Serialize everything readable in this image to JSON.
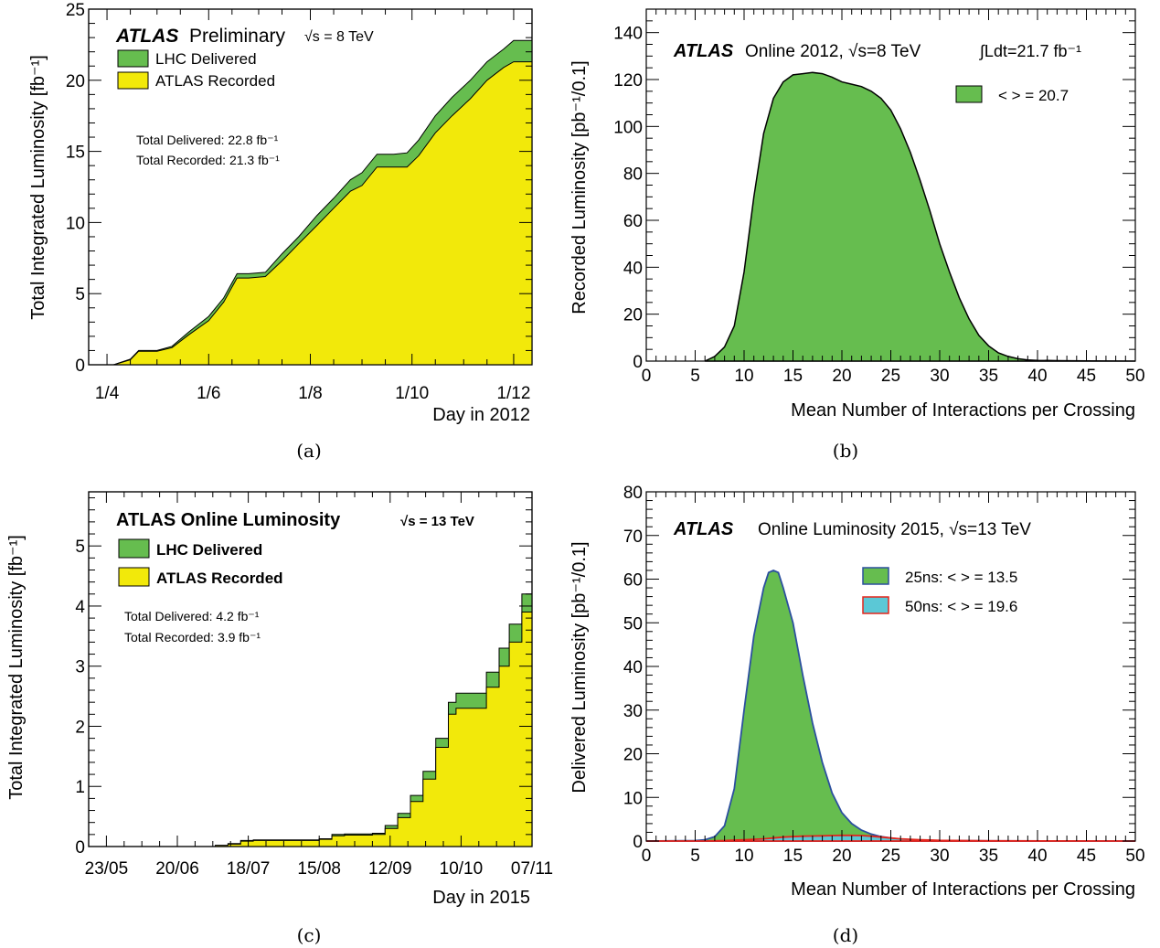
{
  "captions": [
    "(a)",
    "(b)",
    "(c)",
    "(d)"
  ],
  "colors": {
    "green": "#66bd4f",
    "yellow": "#f2e90a",
    "cyan": "#5bc8d6",
    "blue": "#2b4f9e",
    "red": "#e4251c"
  },
  "chart_data": [
    {
      "type": "area",
      "ylabel": "Total Integrated Luminosity  [fb⁻¹]",
      "xlabel": "Day in 2012",
      "ylim": [
        0,
        25
      ],
      "yticks": [
        "0",
        "5",
        "10",
        "15",
        "20",
        "25"
      ],
      "xticks": [
        "1/4",
        "1/6",
        "1/8",
        "1/10",
        "1/12"
      ],
      "header": {
        "atlas": "ATLAS",
        "label": "Preliminary",
        "energy": "√s = 8 TeV"
      },
      "legend": [
        "LHC Delivered",
        "ATLAS Recorded"
      ],
      "notes": [
        "Total Delivered: 22.8 fb⁻¹",
        "Total Recorded: 21.3 fb⁻¹"
      ],
      "x": [
        "2012-04-05",
        "2012-04-15",
        "2012-04-20",
        "2012-05-01",
        "2012-05-10",
        "2012-05-20",
        "2012-06-01",
        "2012-06-10",
        "2012-06-18",
        "2012-06-25",
        "2012-07-05",
        "2012-07-15",
        "2012-07-25",
        "2012-08-05",
        "2012-08-15",
        "2012-08-25",
        "2012-09-01",
        "2012-09-10",
        "2012-09-20",
        "2012-09-28",
        "2012-10-05",
        "2012-10-15",
        "2012-10-25",
        "2012-11-05",
        "2012-11-15",
        "2012-11-25",
        "2012-12-01",
        "2012-12-08"
      ],
      "series": [
        {
          "name": "LHC Delivered",
          "values": [
            0,
            0.4,
            1.0,
            1.0,
            1.3,
            2.3,
            3.4,
            4.7,
            6.4,
            6.4,
            6.5,
            7.8,
            9.0,
            10.5,
            11.7,
            13.0,
            13.5,
            14.8,
            14.8,
            14.9,
            15.8,
            17.5,
            18.8,
            20.0,
            21.3,
            22.2,
            22.8,
            22.8
          ]
        },
        {
          "name": "ATLAS Recorded",
          "values": [
            0,
            0.35,
            0.95,
            0.95,
            1.2,
            2.1,
            3.1,
            4.4,
            6.1,
            6.1,
            6.2,
            7.3,
            8.5,
            9.8,
            11.0,
            12.2,
            12.6,
            13.9,
            13.9,
            13.9,
            14.7,
            16.3,
            17.5,
            18.7,
            20.0,
            20.9,
            21.3,
            21.3
          ]
        }
      ]
    },
    {
      "type": "area",
      "ylabel": "Recorded Luminosity [pb⁻¹/0.1]",
      "xlabel": "Mean Number of Interactions per Crossing",
      "xlim": [
        0,
        50
      ],
      "ylim": [
        0,
        150
      ],
      "xticks": [
        "0",
        "5",
        "10",
        "15",
        "20",
        "25",
        "30",
        "35",
        "40",
        "45",
        "50"
      ],
      "yticks": [
        "0",
        "20",
        "40",
        "60",
        "80",
        "100",
        "120",
        "140"
      ],
      "header": {
        "atlas": "ATLAS",
        "label": "Online 2012, √s=8 TeV",
        "lumi": "∫Ldt=21.7 fb⁻¹"
      },
      "legend": [
        "< > = 20.7"
      ],
      "x": [
        6,
        7,
        8,
        9,
        10,
        11,
        12,
        13,
        14,
        15,
        16,
        17,
        18,
        19,
        20,
        21,
        22,
        23,
        24,
        25,
        26,
        27,
        28,
        29,
        30,
        31,
        32,
        33,
        34,
        35,
        36,
        37,
        38,
        39,
        40,
        42,
        45,
        50
      ],
      "series": [
        {
          "name": "< > = 20.7",
          "values": [
            0,
            2,
            6,
            15,
            38,
            70,
            97,
            112,
            119,
            122,
            122.5,
            123,
            122.5,
            121,
            119,
            118,
            117,
            115,
            112,
            107,
            99,
            89,
            77,
            64,
            50,
            38,
            27,
            18,
            11,
            6.5,
            3.5,
            2,
            1,
            0.5,
            0.3,
            0.2,
            0.1,
            0
          ]
        }
      ]
    },
    {
      "type": "area",
      "ylabel": "Total Integrated Luminosity [fb⁻¹]",
      "xlabel": "Day in 2015",
      "ylim": [
        0,
        5.9
      ],
      "yticks": [
        "0",
        "1",
        "2",
        "3",
        "4",
        "5"
      ],
      "xticks": [
        "23/05",
        "20/06",
        "18/07",
        "15/08",
        "12/09",
        "10/10",
        "07/11"
      ],
      "header": {
        "atlas": "ATLAS Online Luminosity",
        "energy": "√s = 13 TeV"
      },
      "legend": [
        "LHC Delivered",
        "ATLAS Recorded"
      ],
      "notes": [
        "Total Delivered: 4.2 fb⁻¹",
        "Total Recorded: 3.9 fb⁻¹"
      ],
      "x": [
        "2015-05-23",
        "2015-07-05",
        "2015-07-10",
        "2015-07-15",
        "2015-07-20",
        "2015-08-05",
        "2015-08-15",
        "2015-08-20",
        "2015-08-25",
        "2015-09-05",
        "2015-09-10",
        "2015-09-15",
        "2015-09-20",
        "2015-09-25",
        "2015-09-30",
        "2015-10-05",
        "2015-10-08",
        "2015-10-10",
        "2015-10-15",
        "2015-10-20",
        "2015-10-25",
        "2015-10-29",
        "2015-11-03",
        "2015-11-07"
      ],
      "series": [
        {
          "name": "LHC Delivered",
          "values": [
            0,
            0.02,
            0.05,
            0.1,
            0.11,
            0.11,
            0.13,
            0.2,
            0.21,
            0.22,
            0.35,
            0.55,
            0.85,
            1.25,
            1.8,
            2.4,
            2.55,
            2.55,
            2.55,
            2.9,
            3.3,
            3.7,
            4.2,
            4.2
          ]
        },
        {
          "name": "ATLAS Recorded",
          "values": [
            0,
            0.02,
            0.04,
            0.09,
            0.1,
            0.1,
            0.12,
            0.18,
            0.19,
            0.2,
            0.3,
            0.48,
            0.75,
            1.12,
            1.65,
            2.2,
            2.3,
            2.3,
            2.3,
            2.65,
            3.0,
            3.4,
            3.9,
            3.9
          ]
        }
      ]
    },
    {
      "type": "area",
      "ylabel": "Delivered Luminosity [pb⁻¹/0.1]",
      "xlabel": "Mean Number of Interactions per Crossing",
      "xlim": [
        0,
        50
      ],
      "ylim": [
        0,
        80
      ],
      "xticks": [
        "0",
        "5",
        "10",
        "15",
        "20",
        "25",
        "30",
        "35",
        "40",
        "45",
        "50"
      ],
      "yticks": [
        "0",
        "10",
        "20",
        "30",
        "40",
        "50",
        "60",
        "70",
        "80"
      ],
      "header": {
        "atlas": "ATLAS",
        "label": "Online Luminosity 2015, √s=13 TeV"
      },
      "legend": [
        "25ns: < > = 13.5",
        "50ns: < > = 19.6"
      ],
      "x": [
        0,
        5,
        6,
        7,
        8,
        9,
        10,
        11,
        12,
        12.5,
        13,
        13.5,
        14,
        15,
        16,
        17,
        18,
        19,
        20,
        21,
        22,
        23,
        24,
        25,
        26,
        28,
        30,
        35,
        50
      ],
      "series": [
        {
          "name": "25ns: < > = 13.5",
          "values": [
            0,
            0.1,
            0.3,
            1.0,
            3.5,
            12,
            30,
            47,
            58,
            61.5,
            62,
            61.5,
            58,
            50,
            38,
            27,
            18,
            11,
            6.5,
            4,
            2.5,
            1.6,
            1,
            0.7,
            0.4,
            0.2,
            0.1,
            0.05,
            0
          ]
        },
        {
          "name": "50ns: < > = 19.6",
          "values": [
            0,
            0,
            0,
            0.05,
            0.1,
            0.2,
            0.3,
            0.4,
            0.5,
            0.6,
            0.7,
            0.8,
            0.9,
            1.0,
            1.1,
            1.15,
            1.2,
            1.25,
            1.3,
            1.3,
            1.25,
            1.1,
            0.9,
            0.7,
            0.5,
            0.3,
            0.15,
            0.05,
            0
          ]
        }
      ]
    }
  ]
}
